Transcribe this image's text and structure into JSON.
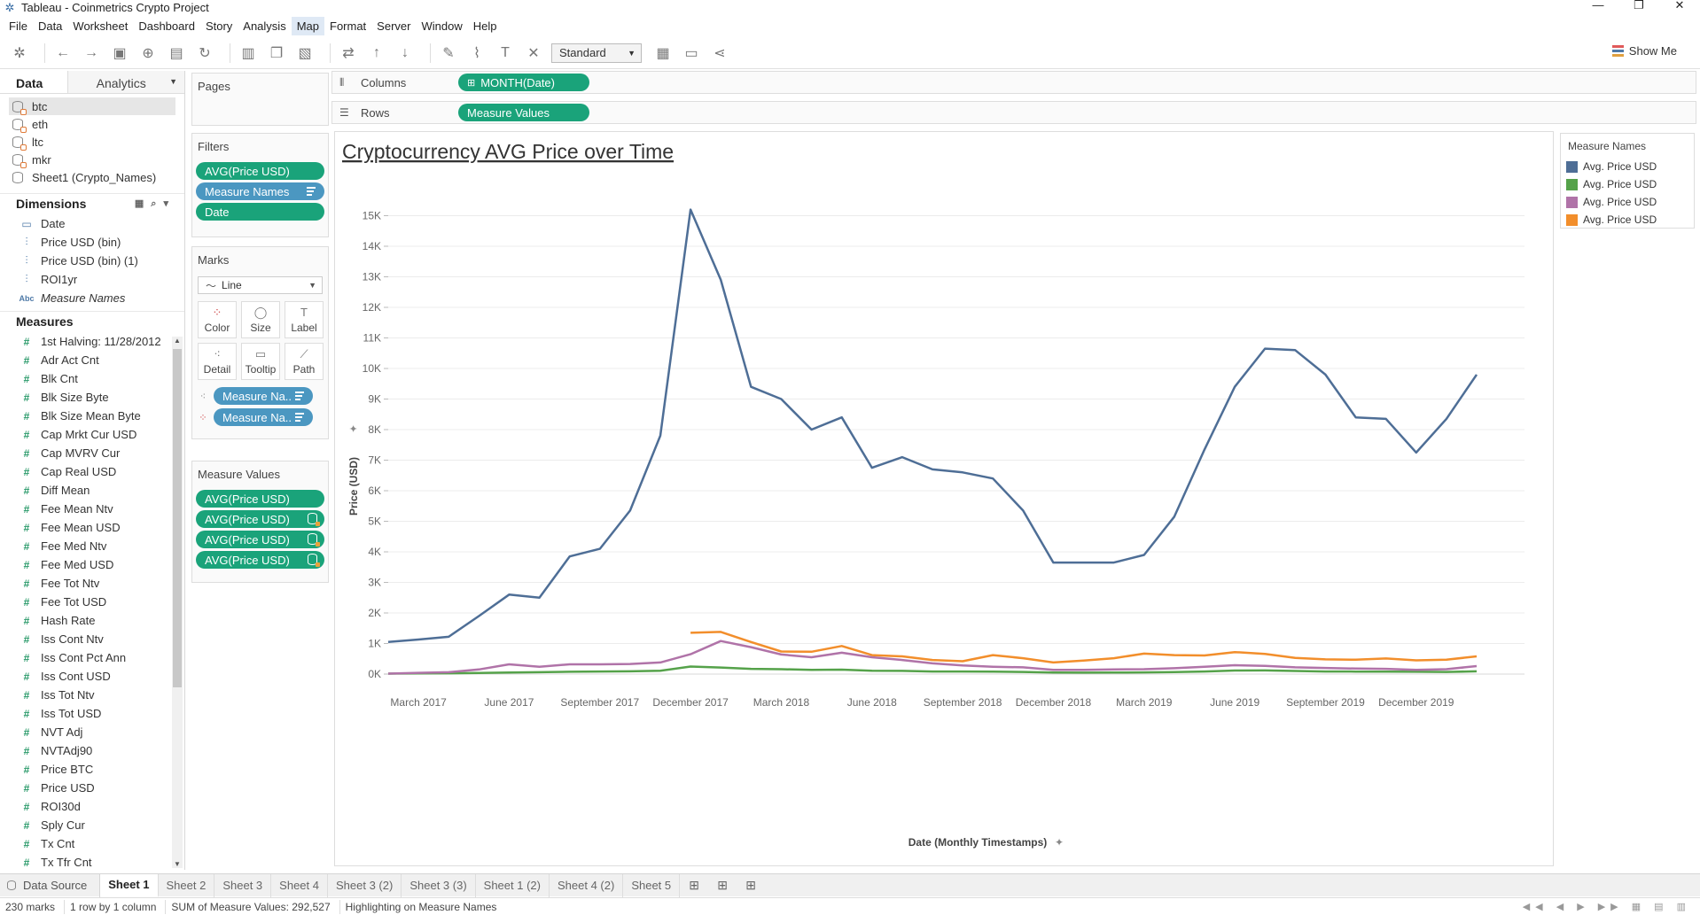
{
  "window": {
    "title": "Tableau - Coinmetrics Crypto Project",
    "controls": [
      "—",
      "❐",
      "✕"
    ]
  },
  "menu": [
    "File",
    "Data",
    "Worksheet",
    "Dashboard",
    "Story",
    "Analysis",
    "Map",
    "Format",
    "Server",
    "Window",
    "Help"
  ],
  "menu_active": "Map",
  "toolbar": {
    "fit_select": "Standard",
    "show_me": "Show Me"
  },
  "data_pane": {
    "tabs": [
      "Data",
      "Analytics"
    ],
    "sources": [
      "btc",
      "eth",
      "ltc",
      "mkr",
      "Sheet1 (Crypto_Names)"
    ],
    "dimensions_header": "Dimensions",
    "dimensions": [
      {
        "icon": "calendar",
        "label": "Date"
      },
      {
        "icon": "bin",
        "label": "Price USD (bin)"
      },
      {
        "icon": "bin",
        "label": "Price USD (bin) (1)"
      },
      {
        "icon": "bin",
        "label": "ROI1yr"
      },
      {
        "icon": "abc",
        "label": "Measure Names",
        "italic": true
      }
    ],
    "measures_header": "Measures",
    "measures": [
      "1st Halving: 11/28/2012",
      "Adr Act Cnt",
      "Blk Cnt",
      "Blk Size Byte",
      "Blk Size Mean Byte",
      "Cap Mrkt Cur USD",
      "Cap MVRV Cur",
      "Cap Real USD",
      "Diff Mean",
      "Fee Mean Ntv",
      "Fee Mean USD",
      "Fee Med Ntv",
      "Fee Med USD",
      "Fee Tot Ntv",
      "Fee Tot USD",
      "Hash Rate",
      "Iss Cont Ntv",
      "Iss Cont Pct Ann",
      "Iss Cont USD",
      "Iss Tot Ntv",
      "Iss Tot USD",
      "NVT Adj",
      "NVTAdj90",
      "Price BTC",
      "Price USD",
      "ROI30d",
      "Sply Cur",
      "Tx Cnt",
      "Tx Tfr Cnt"
    ]
  },
  "cards": {
    "pages": "Pages",
    "filters": {
      "title": "Filters",
      "pills": [
        "AVG(Price USD)",
        "Measure Names",
        "Date"
      ]
    },
    "marks": {
      "title": "Marks",
      "type": "Line",
      "buttons": [
        "Color",
        "Size",
        "Label",
        "Detail",
        "Tooltip",
        "Path"
      ],
      "pills": [
        "Measure Na..",
        "Measure Na.."
      ]
    },
    "measure_values": {
      "title": "Measure Values",
      "pills": [
        "AVG(Price USD)",
        "AVG(Price USD)",
        "AVG(Price USD)",
        "AVG(Price USD)"
      ]
    }
  },
  "shelves": {
    "columns": {
      "label": "Columns",
      "pill": "MONTH(Date)"
    },
    "rows": {
      "label": "Rows",
      "pill": "Measure Values"
    }
  },
  "legend": {
    "title": "Measure Names",
    "items": [
      {
        "label": "Avg. Price USD",
        "color": "#4e6e96"
      },
      {
        "label": "Avg. Price USD",
        "color": "#55a24a"
      },
      {
        "label": "Avg. Price USD",
        "color": "#b073a8"
      },
      {
        "label": "Avg. Price USD",
        "color": "#f28e2b"
      }
    ]
  },
  "chart_data": {
    "type": "line",
    "title": "Cryptocurrency AVG Price over Time",
    "xlabel": "Date (Monthly Timestamps)",
    "ylabel": "Price (USD)",
    "ylim": [
      0,
      16000
    ],
    "yticks": [
      "0K",
      "1K",
      "2K",
      "3K",
      "4K",
      "5K",
      "6K",
      "7K",
      "8K",
      "9K",
      "10K",
      "11K",
      "12K",
      "13K",
      "14K",
      "15K"
    ],
    "x": [
      "2017-02",
      "2017-03",
      "2017-04",
      "2017-05",
      "2017-06",
      "2017-07",
      "2017-08",
      "2017-09",
      "2017-10",
      "2017-11",
      "2017-12",
      "2018-01",
      "2018-02",
      "2018-03",
      "2018-04",
      "2018-05",
      "2018-06",
      "2018-07",
      "2018-08",
      "2018-09",
      "2018-10",
      "2018-11",
      "2018-12",
      "2019-01",
      "2019-02",
      "2019-03",
      "2019-04",
      "2019-05",
      "2019-06",
      "2019-07",
      "2019-08",
      "2019-09",
      "2019-10",
      "2019-11",
      "2019-12",
      "2020-01",
      "2020-02"
    ],
    "xticks": [
      {
        "label": "March 2017",
        "x": "2017-03"
      },
      {
        "label": "June 2017",
        "x": "2017-06"
      },
      {
        "label": "September 2017",
        "x": "2017-09"
      },
      {
        "label": "December 2017",
        "x": "2017-12"
      },
      {
        "label": "March 2018",
        "x": "2018-03"
      },
      {
        "label": "June 2018",
        "x": "2018-06"
      },
      {
        "label": "September 2018",
        "x": "2018-09"
      },
      {
        "label": "December 2018",
        "x": "2018-12"
      },
      {
        "label": "March 2019",
        "x": "2019-03"
      },
      {
        "label": "June 2019",
        "x": "2019-06"
      },
      {
        "label": "September 2019",
        "x": "2019-09"
      },
      {
        "label": "December 2019",
        "x": "2019-12"
      }
    ],
    "grid": true,
    "series": [
      {
        "color": "#4e6e96",
        "values": [
          1050,
          1130,
          1220,
          1900,
          2600,
          2500,
          3850,
          4100,
          5350,
          7800,
          15200,
          12900,
          9400,
          9000,
          8000,
          8400,
          6750,
          7100,
          6700,
          6600,
          6400,
          5350,
          3650,
          3650,
          3650,
          3900,
          5150,
          7350,
          9400,
          10650,
          10600,
          9800,
          8400,
          8350,
          7250,
          8350,
          9800
        ]
      },
      {
        "color": "#55a24a",
        "values": [
          15,
          20,
          25,
          35,
          50,
          60,
          75,
          85,
          90,
          110,
          245,
          215,
          170,
          160,
          135,
          145,
          110,
          105,
          85,
          85,
          80,
          70,
          50,
          45,
          50,
          55,
          65,
          85,
          115,
          120,
          100,
          85,
          80,
          80,
          75,
          70,
          90
        ]
      },
      {
        "color": "#b073a8",
        "values": [
          15,
          40,
          60,
          150,
          320,
          240,
          320,
          320,
          330,
          380,
          650,
          1080,
          880,
          640,
          550,
          700,
          550,
          460,
          350,
          280,
          240,
          220,
          140,
          140,
          150,
          160,
          190,
          240,
          290,
          270,
          220,
          200,
          180,
          170,
          140,
          160,
          260
        ]
      },
      {
        "color": "#f28e2b",
        "values": [
          null,
          null,
          null,
          null,
          null,
          null,
          null,
          null,
          null,
          null,
          1350,
          1380,
          1050,
          740,
          730,
          920,
          620,
          580,
          460,
          420,
          620,
          520,
          380,
          440,
          520,
          670,
          620,
          610,
          720,
          660,
          530,
          480,
          470,
          510,
          450,
          470,
          580
        ]
      }
    ]
  },
  "sheet_tabs": {
    "data_source": "Data Source",
    "sheets": [
      "Sheet 1",
      "Sheet 2",
      "Sheet 3",
      "Sheet 4",
      "Sheet 3 (2)",
      "Sheet 3 (3)",
      "Sheet 1 (2)",
      "Sheet 4 (2)",
      "Sheet 5"
    ],
    "active": "Sheet 1"
  },
  "status": {
    "marks": "230 marks",
    "dims": "1 row by 1 column",
    "sum": "SUM of Measure Values: 292,527",
    "highlight": "Highlighting on Measure Names"
  }
}
